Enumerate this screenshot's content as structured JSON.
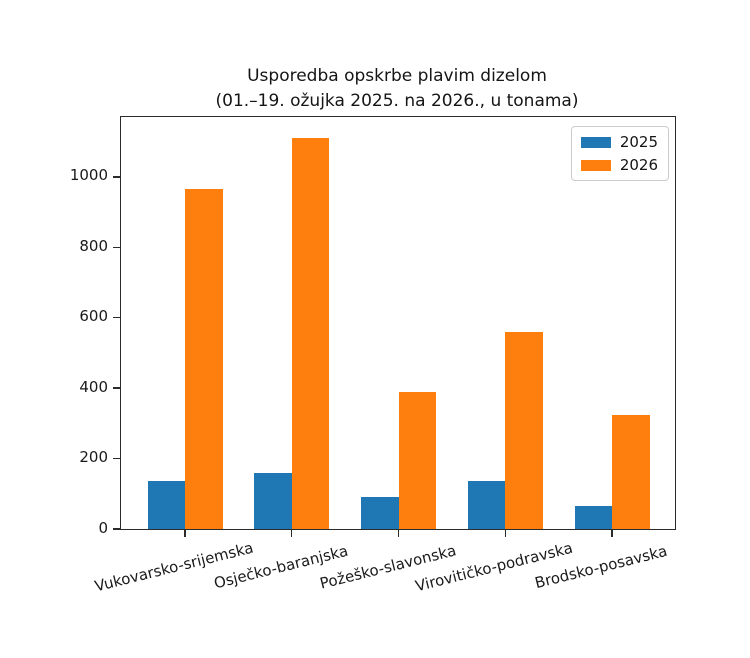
{
  "chart_data": {
    "type": "bar",
    "title": "Usporedba opskrbe plavim dizelom",
    "subtitle": "(01.–19. ožujka 2025. na 2026., u tonama)",
    "categories": [
      "Vukovarsko-srijemska",
      "Osječko-baranjska",
      "Požeško-slavonska",
      "Virovitičko-podravska",
      "Brodsko-posavska"
    ],
    "series": [
      {
        "name": "2025",
        "color": "#1f77b4",
        "values": [
          135,
          160,
          90,
          135,
          65
        ]
      },
      {
        "name": "2026",
        "color": "#ff7f0e",
        "values": [
          965,
          1110,
          390,
          560,
          325
        ]
      }
    ],
    "xlabel": "",
    "ylabel": "",
    "yticks": [
      0,
      200,
      400,
      600,
      800,
      1000
    ],
    "ylim": [
      0,
      1170
    ],
    "grid": false,
    "legend_position": "upper right",
    "spine_color": "#2b2b2b",
    "background_color": "#ffffff"
  }
}
